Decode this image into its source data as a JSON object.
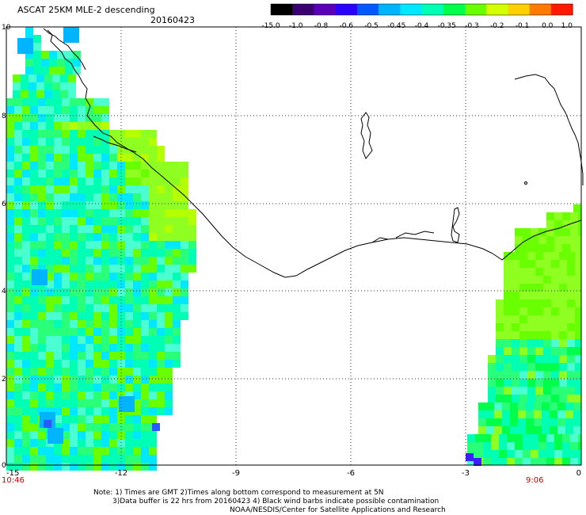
{
  "header": {
    "title": "ASCAT 25KM MLE-2 descending",
    "date": "20160423"
  },
  "colorbar": {
    "labels": [
      "-15.0",
      "-1.0",
      "-0.8",
      "-0.6",
      "-0.5",
      "-0.45",
      "-0.4",
      "-0.35",
      "-0.3",
      "-0.2",
      "-0.1",
      "0.0",
      "1.0"
    ],
    "colors": [
      "#000000",
      "#3a0070",
      "#5a00b8",
      "#2a00ff",
      "#005aff",
      "#00b4ff",
      "#00e8ff",
      "#00ffb4",
      "#00ff4a",
      "#6aff00",
      "#d4ff00",
      "#ffd000",
      "#ff7a00",
      "#ff1a00"
    ]
  },
  "map": {
    "x_ticks": [
      "-15",
      "-12",
      "-9",
      "-6",
      "-3",
      "0"
    ],
    "y_ticks": [
      "10",
      "8",
      "6",
      "4",
      "2",
      "0"
    ],
    "time_left": "10:46",
    "time_right": "9:06"
  },
  "notes": {
    "line1": "Note: 1) Times are GMT 2)Times along bottom correspond to measurement at 5N",
    "line2": "3)Data buffer is 22 hrs from 20160423 4) Black wind barbs indicate possible contamination",
    "line3": "NOAA/NESDIS/Center for Satellite Applications and Research"
  }
}
